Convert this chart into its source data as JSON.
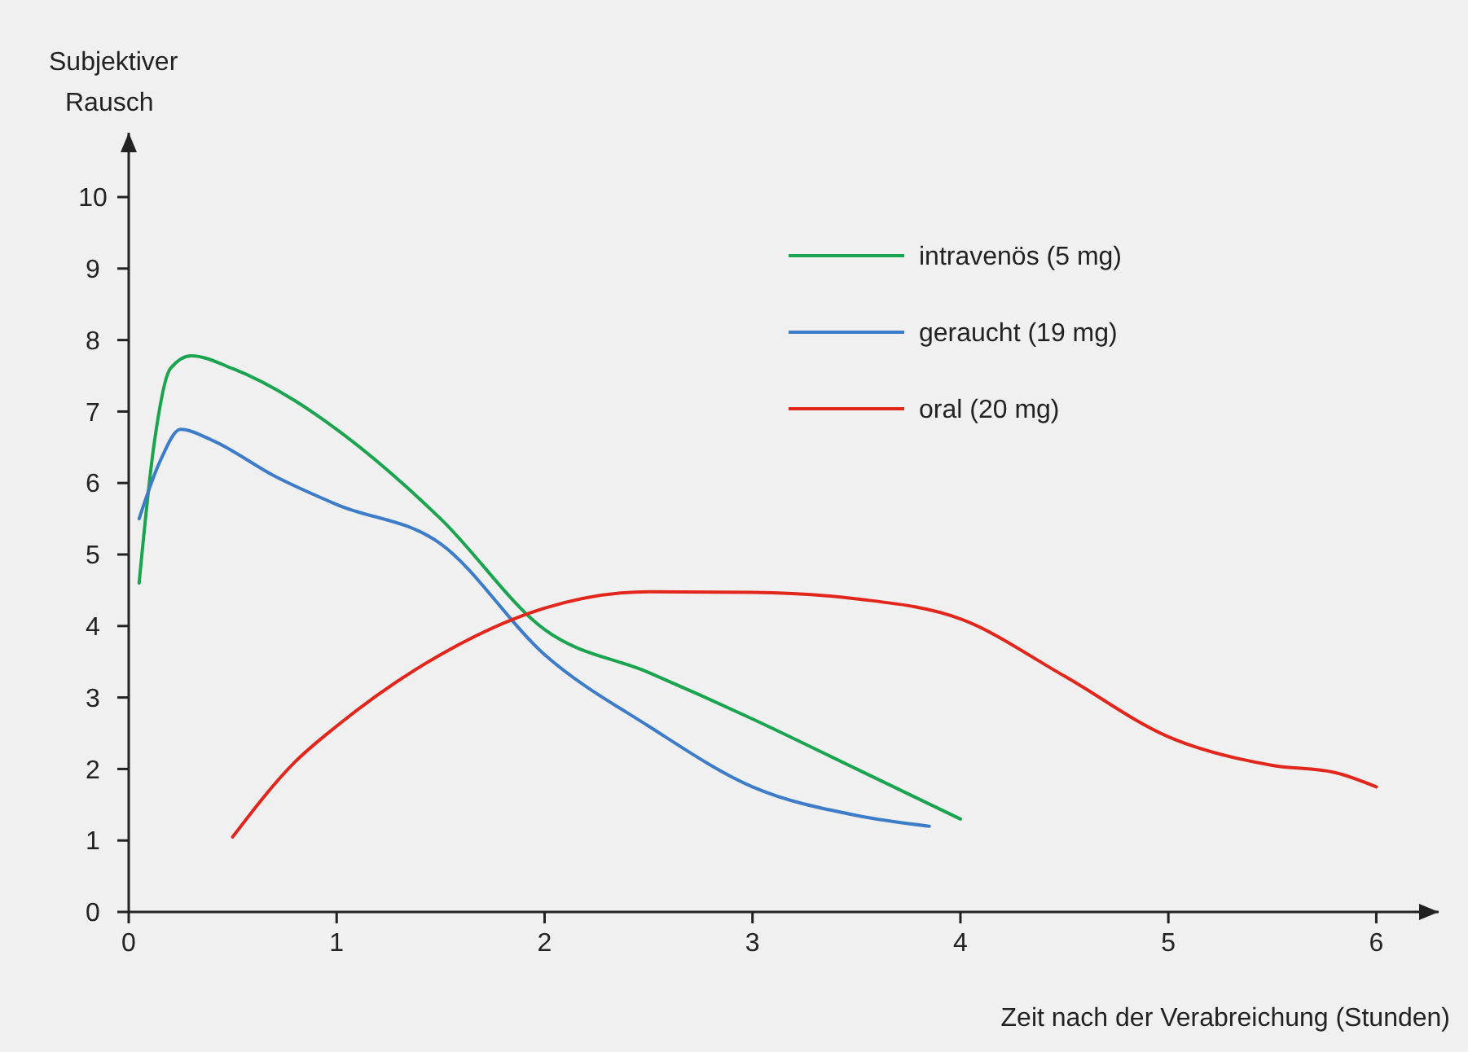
{
  "chart_data": {
    "type": "line",
    "ylabel": "Subjektiver Rausch",
    "xlabel": "Zeit nach der Verabreichung (Stunden)",
    "xlim": [
      0,
      6.3
    ],
    "ylim": [
      0,
      10.9
    ],
    "xticks": [
      0,
      1,
      2,
      3,
      4,
      5,
      6
    ],
    "yticks": [
      0,
      1,
      2,
      3,
      4,
      5,
      6,
      7,
      8,
      9,
      10
    ],
    "grid": false,
    "legend": "top right",
    "marker": "none",
    "line_style": "solid",
    "series": [
      {
        "name": "intravenös (5 mg)",
        "color": "#1aa44f",
        "x": [
          0.05,
          0.12,
          0.2,
          0.3,
          0.5,
          0.8,
          1.0,
          1.5,
          2.0,
          2.5,
          3.0,
          3.5,
          4.0
        ],
        "values": [
          4.6,
          6.5,
          7.6,
          7.78,
          7.6,
          7.15,
          6.75,
          5.5,
          3.95,
          3.35,
          2.7,
          2.0,
          1.3
        ]
      },
      {
        "name": "geraucht (19 mg)",
        "color": "#3d7cc9",
        "x": [
          0.05,
          0.15,
          0.25,
          0.4,
          0.7,
          1.0,
          1.5,
          2.0,
          2.5,
          3.0,
          3.5,
          3.85
        ],
        "values": [
          5.5,
          6.3,
          6.75,
          6.6,
          6.1,
          5.7,
          5.15,
          3.6,
          2.6,
          1.75,
          1.35,
          1.2
        ]
      },
      {
        "name": "oral (20 mg)",
        "color": "#e2261c",
        "x": [
          0.5,
          0.8,
          1.0,
          1.5,
          2.0,
          2.5,
          3.0,
          3.5,
          4.0,
          4.5,
          5.0,
          5.5,
          5.8,
          6.0
        ],
        "values": [
          1.05,
          2.1,
          2.6,
          3.6,
          4.25,
          4.48,
          4.47,
          4.38,
          4.1,
          3.3,
          2.45,
          2.05,
          1.95,
          1.75
        ]
      }
    ]
  }
}
